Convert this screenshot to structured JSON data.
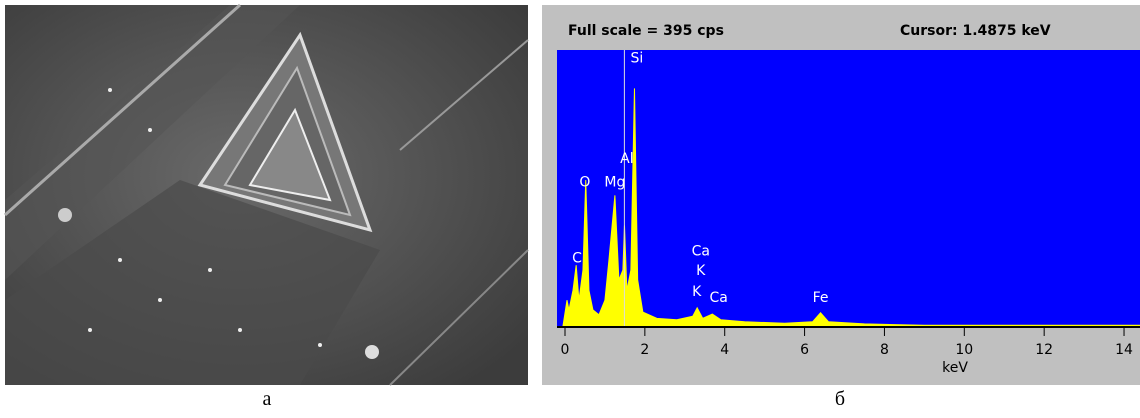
{
  "panels": [
    "а",
    "б"
  ],
  "chart_data": {
    "type": "area",
    "title": "Full scale = 395  cps",
    "cursor": {
      "value": 1.4875,
      "label": "Cursor:  1.4875 keV"
    },
    "xlabel": "keV",
    "x": [
      -0.05,
      0.05,
      0.1,
      0.2,
      0.28,
      0.35,
      0.45,
      0.52,
      0.6,
      0.7,
      0.85,
      1.0,
      1.1,
      1.25,
      1.35,
      1.45,
      1.49,
      1.55,
      1.65,
      1.74,
      1.82,
      1.95,
      2.3,
      2.8,
      3.2,
      3.31,
      3.45,
      3.69,
      3.9,
      4.5,
      5.5,
      6.2,
      6.4,
      6.6,
      7.5,
      9,
      12,
      14.4
    ],
    "values": [
      0,
      37,
      23,
      51,
      87,
      37,
      80,
      209,
      51,
      23,
      16,
      37,
      94,
      187,
      66,
      80,
      144,
      51,
      80,
      340,
      66,
      20,
      11,
      9,
      14,
      26,
      11,
      17,
      9,
      6,
      4,
      6,
      19,
      6,
      3,
      1,
      1,
      1
    ],
    "color": "#ffff00",
    "background": "#0000ff",
    "xlim": [
      -0.2,
      14.4
    ],
    "ylim": [
      0,
      395
    ],
    "xticks": [
      0,
      2,
      4,
      6,
      8,
      10,
      12,
      14
    ],
    "annotations": [
      {
        "label": "C",
        "x": 0.3,
        "y": 91
      },
      {
        "label": "O",
        "x": 0.5,
        "y": 200
      },
      {
        "label": "Mg",
        "x": 1.25,
        "y": 200
      },
      {
        "label": "Al",
        "x": 1.55,
        "y": 233
      },
      {
        "label": "Si",
        "x": 1.8,
        "y": 377
      },
      {
        "label": "Ca",
        "x": 3.4,
        "y": 101
      },
      {
        "label": "K",
        "x": 3.4,
        "y": 73
      },
      {
        "label": "K",
        "x": 3.3,
        "y": 43
      },
      {
        "label": "Ca",
        "x": 3.85,
        "y": 34
      },
      {
        "label": "Fe",
        "x": 6.4,
        "y": 34
      }
    ]
  }
}
